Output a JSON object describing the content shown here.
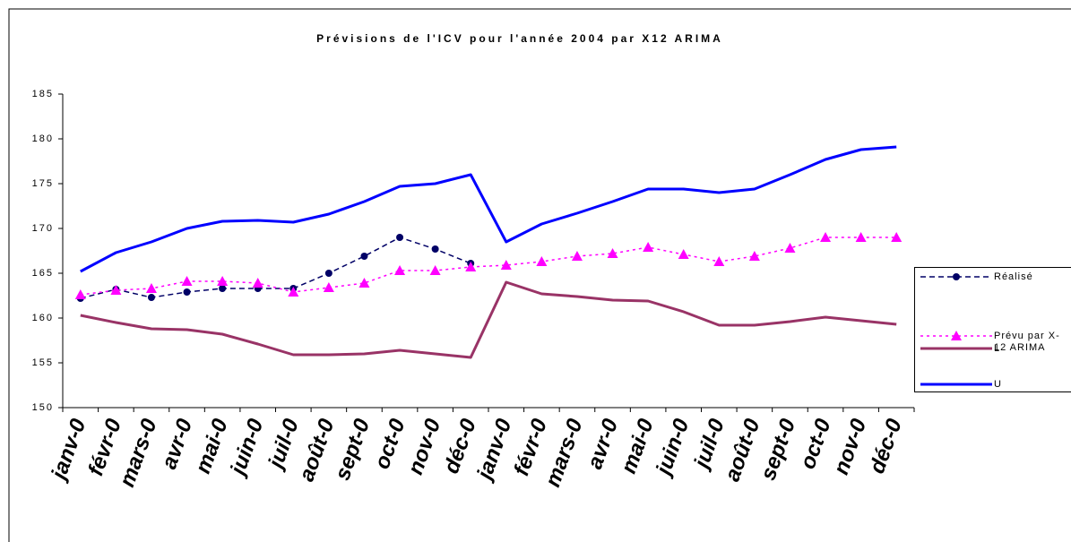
{
  "chart_data": {
    "type": "line",
    "title": "Prévisions de l'ICV pour l'année 2004 par X12 ARIMA",
    "categories": [
      "janv-0",
      "févr-0",
      "mars-0",
      "avr-0",
      "mai-0",
      "juin-0",
      "juil-0",
      "août-0",
      "sept-0",
      "oct-0",
      "nov-0",
      "déc-0",
      "janv-0",
      "févr-0",
      "mars-0",
      "avr-0",
      "mai-0",
      "juin-0",
      "juil-0",
      "août-0",
      "sept-0",
      "oct-0",
      "nov-0",
      "déc-0"
    ],
    "series": [
      {
        "name": "Réalisé",
        "color": "#000066",
        "dash": "6,4",
        "marker": "circle",
        "values": [
          162.2,
          163.2,
          162.3,
          162.9,
          163.3,
          163.3,
          163.3,
          165.0,
          166.9,
          169.0,
          167.7,
          166.1,
          null,
          null,
          null,
          null,
          null,
          null,
          null,
          null,
          null,
          null,
          null,
          null
        ]
      },
      {
        "name": "Prévu par X-12 ARIMA",
        "color": "#ff00ff",
        "dash": "3,4",
        "marker": "triangle",
        "values": [
          162.6,
          163.1,
          163.3,
          164.1,
          164.1,
          163.9,
          162.9,
          163.4,
          163.9,
          165.3,
          165.3,
          165.7,
          165.9,
          166.3,
          166.9,
          167.2,
          167.9,
          167.1,
          166.3,
          166.9,
          167.8,
          169.0,
          169.0,
          169.0
        ]
      },
      {
        "name": "L",
        "color": "#993366",
        "dash": "",
        "marker": "none",
        "values": [
          160.3,
          159.5,
          158.8,
          158.7,
          158.2,
          157.1,
          155.9,
          155.9,
          156.0,
          156.4,
          156.0,
          155.6,
          164.0,
          162.7,
          162.4,
          162.0,
          161.9,
          160.7,
          159.2,
          159.2,
          159.6,
          160.1,
          159.7,
          159.3
        ]
      },
      {
        "name": "U",
        "color": "#0000ff",
        "dash": "",
        "marker": "none",
        "values": [
          165.2,
          167.3,
          168.5,
          170.0,
          170.8,
          170.9,
          170.7,
          171.6,
          173.0,
          174.7,
          175.0,
          176.0,
          168.5,
          170.5,
          171.7,
          173.0,
          174.4,
          174.4,
          174.0,
          174.4,
          176.0,
          177.7,
          178.8,
          179.1
        ]
      }
    ],
    "ylim": [
      150,
      185
    ],
    "yticks": [
      150,
      155,
      160,
      165,
      170,
      175,
      180,
      185
    ],
    "grid": false
  }
}
